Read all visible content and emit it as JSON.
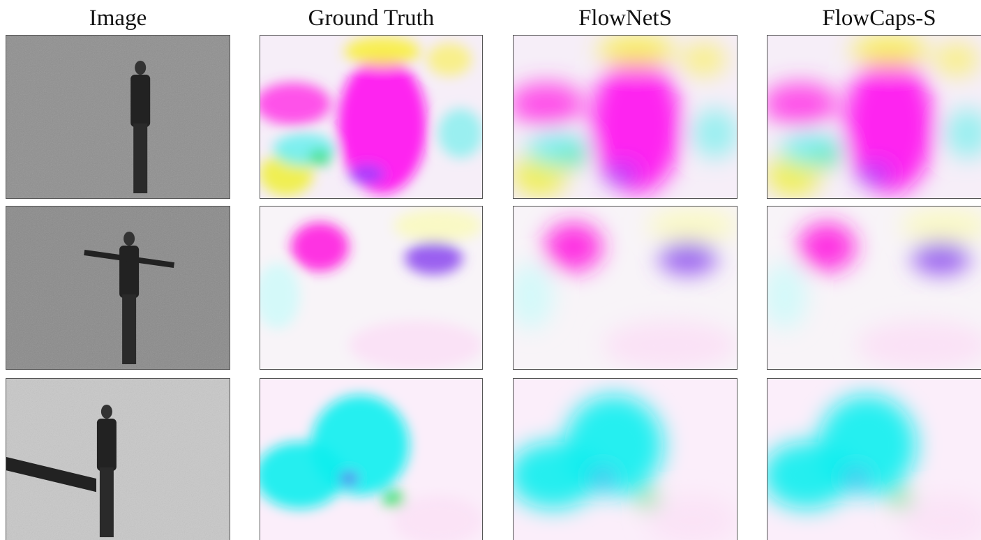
{
  "header": {
    "columns": [
      "Image",
      "Ground Truth",
      "FlowNetS",
      "FlowCaps-S"
    ]
  }
}
